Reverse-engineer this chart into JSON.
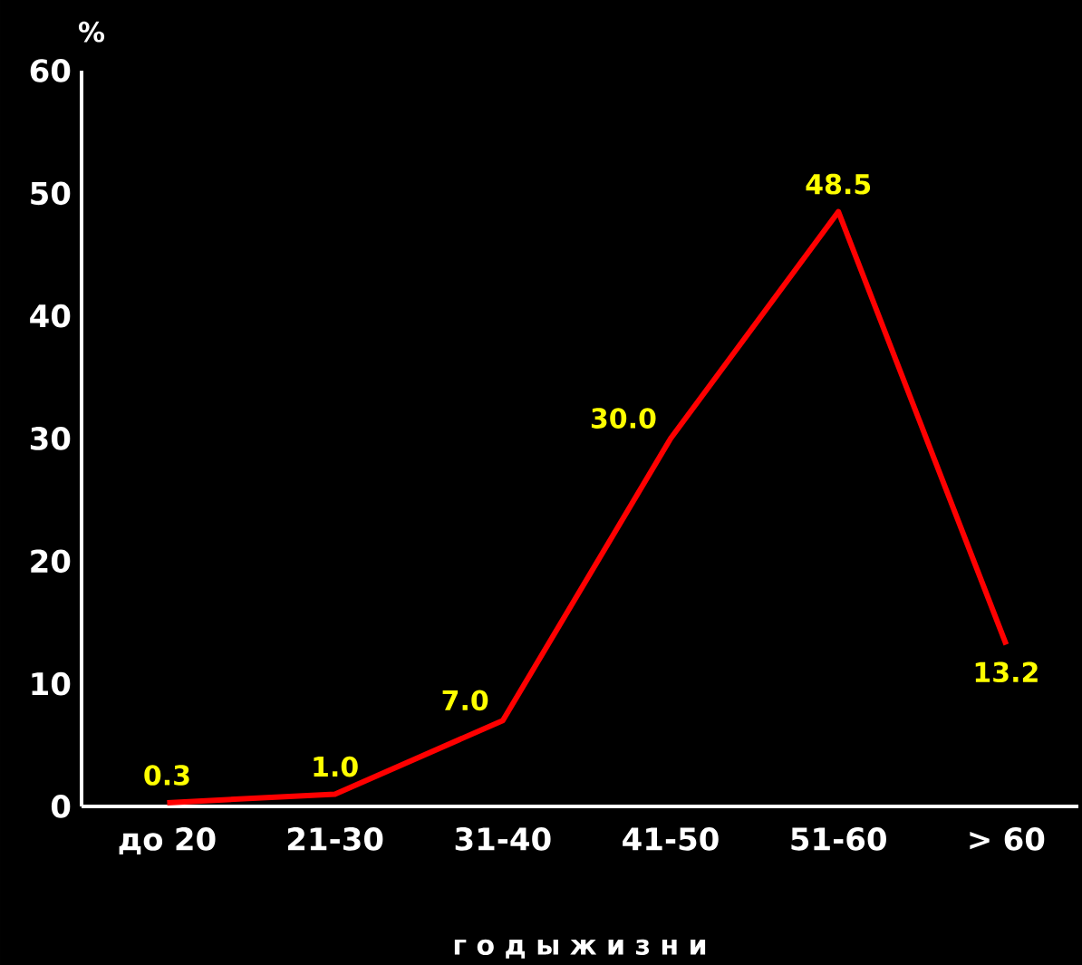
{
  "chart_data": {
    "type": "line",
    "xlabel": "г о д ы     ж и з н и",
    "ylabel": "%",
    "categories": [
      "до 20",
      "21-30",
      "31-40",
      "41-50",
      "51-60",
      "> 60"
    ],
    "values": [
      0.3,
      1.0,
      7.0,
      30.0,
      48.5,
      13.2
    ],
    "color": "#ff0000",
    "ylim": [
      0,
      60
    ],
    "yticks": [
      0,
      10,
      20,
      30,
      40,
      50,
      60
    ],
    "value_labels": [
      "0.3",
      "1.0",
      "7.0",
      "30.0",
      "48.5",
      "13.2"
    ],
    "grid": false,
    "marker": "none",
    "line_style": "solid"
  }
}
